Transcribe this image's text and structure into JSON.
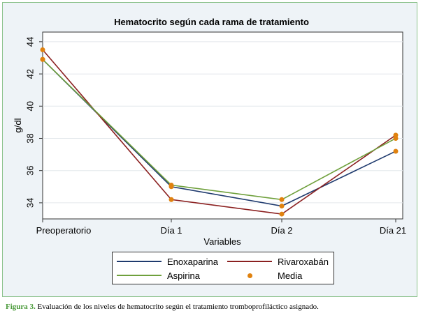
{
  "caption": {
    "label": "Figura 3.",
    "text": " Evaluación de los niveles de hematocrito según el tratamiento tromboprofiláctico asignado."
  },
  "chart_data": {
    "type": "line",
    "title": "Hematocrito según cada rama de tratamiento",
    "xlabel": "Variables",
    "ylabel": "g/dl",
    "categories": [
      "Preoperatorio",
      "Día 1",
      "Día 2",
      "Día 21"
    ],
    "ylim": [
      33,
      44.6
    ],
    "yticks": [
      34,
      36,
      38,
      40,
      42,
      44
    ],
    "grid": "horizontal",
    "legend_position": "bottom",
    "series": [
      {
        "name": "Enoxaparina",
        "color": "#1f3a6e",
        "values": [
          42.9,
          35.0,
          33.8,
          37.2
        ]
      },
      {
        "name": "Rivaroxabán",
        "color": "#8b2020",
        "values": [
          43.5,
          34.2,
          33.3,
          38.2
        ]
      },
      {
        "name": "Aspirina",
        "color": "#6fa03c",
        "values": [
          42.9,
          35.1,
          34.2,
          38.0
        ]
      }
    ],
    "mean_marker": {
      "name": "Media",
      "color": "#e0820f"
    }
  }
}
